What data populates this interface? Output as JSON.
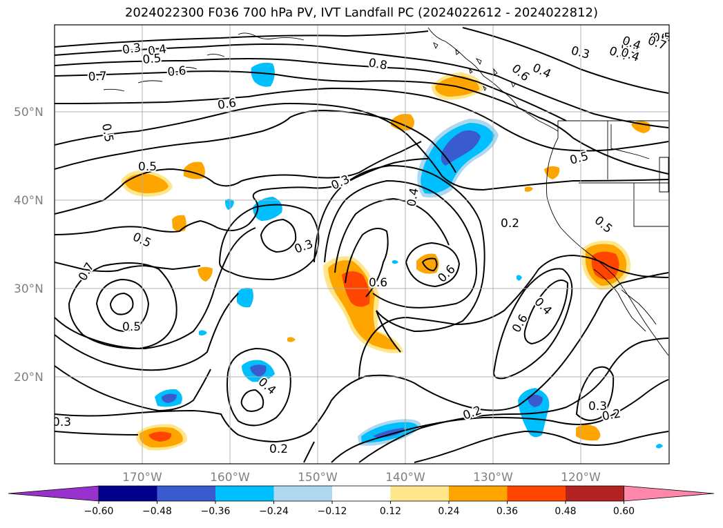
{
  "title": "2024022300 F036 700 hPa PV, IVT Landfall PC (2024022612 - 2024022812)",
  "map": {
    "lat_labels": [
      "50°N",
      "40°N",
      "30°N",
      "20°N"
    ],
    "lon_labels": [
      "170°W",
      "160°W",
      "150°W",
      "140°W",
      "130°W",
      "120°W"
    ],
    "gridline_color": "#b0b0b0",
    "tick_label_color": "#808080",
    "contour_labels": [
      "0.3",
      "0.4",
      "0.5",
      "0.6",
      "0.7",
      "0.8",
      "0.5",
      "0.4",
      "0.3",
      "0.4",
      "0.6",
      "0.5",
      "0.6",
      "0.5",
      "0.3",
      "0.4",
      "0.2",
      "0.5",
      "0.3",
      "0.5",
      "0.4",
      "0.6",
      "0.6",
      "0.6",
      "0.7",
      "0.5",
      "0.4",
      "0.4",
      "0.3",
      "0.2",
      "0.3",
      "0.2",
      "0.2",
      "0.6",
      "0.5",
      "0.5",
      "0.4",
      "0.7"
    ]
  },
  "colorbar": {
    "ticks": [
      "−0.60",
      "−0.48",
      "−0.36",
      "−0.24",
      "−0.12",
      "0.12",
      "0.24",
      "0.36",
      "0.48",
      "0.60"
    ],
    "colors": [
      "#9932cc",
      "#00008b",
      "#3a5bd0",
      "#00bfff",
      "#add8f0",
      "#ffffff",
      "#ffe68a",
      "#ffa500",
      "#ff4500",
      "#b22222",
      "#ff88aa"
    ]
  },
  "shading_colors": {
    "pos_light": "#ffe68a",
    "pos_mid": "#ffa500",
    "pos_strong": "#ff4500",
    "neg_light": "#add8f0",
    "neg_mid": "#00bfff",
    "neg_strong": "#3a5bd0"
  }
}
